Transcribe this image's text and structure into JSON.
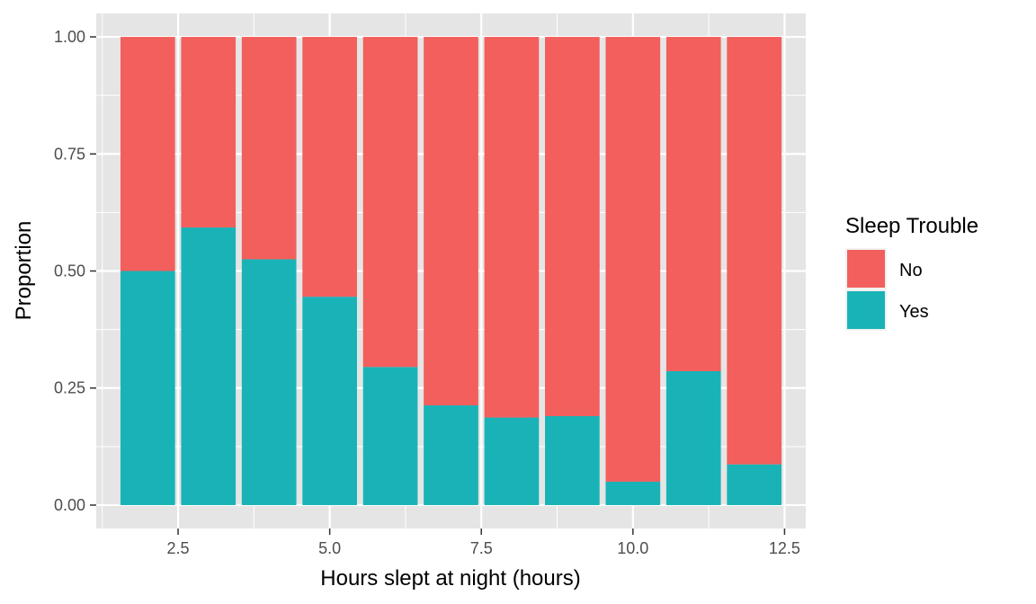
{
  "chart_data": {
    "type": "bar",
    "stacked": true,
    "xlabel": "Hours slept at night (hours)",
    "ylabel": "Proportion",
    "x": [
      2,
      3,
      4,
      5,
      6,
      7,
      8,
      9,
      10,
      11,
      12
    ],
    "xlim": [
      1.15,
      12.85
    ],
    "ylim": [
      -0.05,
      1.05
    ],
    "xticks": [
      2.5,
      5.0,
      7.5,
      10.0,
      12.5
    ],
    "xtick_labels": [
      "2.5",
      "5.0",
      "7.5",
      "10.0",
      "12.5"
    ],
    "yticks": [
      0,
      0.25,
      0.5,
      0.75,
      1.0
    ],
    "ytick_labels": [
      "0.00",
      "0.25",
      "0.50",
      "0.75",
      "1.00"
    ],
    "grid": true,
    "legend": {
      "title": "Sleep Trouble",
      "position": "right",
      "items": [
        "No",
        "Yes"
      ]
    },
    "series": [
      {
        "name": "Yes",
        "color": "#19b3b7",
        "values": [
          0.5,
          0.593,
          0.525,
          0.445,
          0.295,
          0.213,
          0.187,
          0.19,
          0.05,
          0.286,
          0.087
        ]
      },
      {
        "name": "No",
        "color": "#f25f5c",
        "values": [
          0.5,
          0.407,
          0.475,
          0.555,
          0.705,
          0.787,
          0.813,
          0.81,
          0.95,
          0.714,
          0.913
        ]
      }
    ],
    "colors": {
      "panel": "#e5e5e5",
      "grid": "#ffffff",
      "axis_text": "#4d4d4d",
      "tick": "#333333"
    }
  }
}
